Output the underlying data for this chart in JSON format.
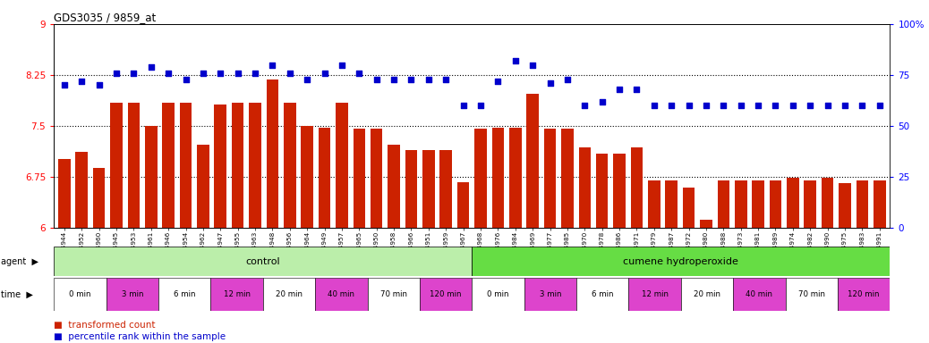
{
  "title": "GDS3035 / 9859_at",
  "gsm_labels": [
    "GSM184944",
    "GSM184952",
    "GSM184960",
    "GSM184945",
    "GSM184953",
    "GSM184961",
    "GSM184946",
    "GSM184954",
    "GSM184962",
    "GSM184947",
    "GSM184955",
    "GSM184963",
    "GSM184948",
    "GSM184956",
    "GSM184964",
    "GSM184949",
    "GSM184957",
    "GSM184965",
    "GSM184950",
    "GSM184958",
    "GSM184966",
    "GSM184951",
    "GSM184959",
    "GSM184967",
    "GSM184968",
    "GSM184976",
    "GSM184984",
    "GSM184969",
    "GSM184977",
    "GSM184985",
    "GSM184970",
    "GSM184978",
    "GSM184986",
    "GSM184971",
    "GSM184979",
    "GSM184987",
    "GSM184972",
    "GSM184980",
    "GSM184988",
    "GSM184973",
    "GSM184981",
    "GSM184989",
    "GSM184974",
    "GSM184982",
    "GSM184990",
    "GSM184975",
    "GSM184983",
    "GSM184991"
  ],
  "bar_values": [
    7.02,
    7.12,
    6.88,
    7.84,
    7.84,
    7.5,
    7.84,
    7.84,
    7.22,
    7.82,
    7.84,
    7.84,
    8.18,
    7.84,
    7.5,
    7.48,
    7.84,
    7.46,
    7.46,
    7.22,
    7.15,
    7.15,
    7.15,
    6.68,
    7.46,
    7.48,
    7.48,
    7.98,
    7.46,
    7.46,
    7.18,
    7.1,
    7.1,
    7.18,
    6.7,
    6.7,
    6.6,
    6.12,
    6.7,
    6.7,
    6.7,
    6.7,
    6.74,
    6.7,
    6.74,
    6.66,
    6.7,
    6.7
  ],
  "percentile_values": [
    70,
    72,
    70,
    76,
    76,
    79,
    76,
    73,
    76,
    76,
    76,
    76,
    80,
    76,
    73,
    76,
    80,
    76,
    73,
    73,
    73,
    73,
    73,
    60,
    60,
    72,
    82,
    80,
    71,
    73,
    60,
    62,
    68,
    68,
    60,
    60,
    60,
    60,
    60,
    60,
    60,
    60,
    60,
    60,
    60,
    60,
    60,
    60
  ],
  "bar_color": "#cc2200",
  "dot_color": "#0000cc",
  "control_bg": "#aaddaa",
  "cumene_bg": "#44cc44",
  "time_labels": [
    "0 min",
    "3 min",
    "6 min",
    "12 min",
    "20 min",
    "40 min",
    "70 min",
    "120 min"
  ],
  "time_colors": [
    "#ffccff",
    "#ee66ee",
    "#ffccff",
    "#ee66ee",
    "#ffccff",
    "#ee66ee",
    "#ffccff",
    "#ee66ee"
  ],
  "ylim_left": [
    6,
    9
  ],
  "ylim_right": [
    0,
    100
  ],
  "yticks_left": [
    6,
    6.75,
    7.5,
    8.25,
    9
  ],
  "yticks_right": [
    0,
    25,
    50,
    75,
    100
  ]
}
